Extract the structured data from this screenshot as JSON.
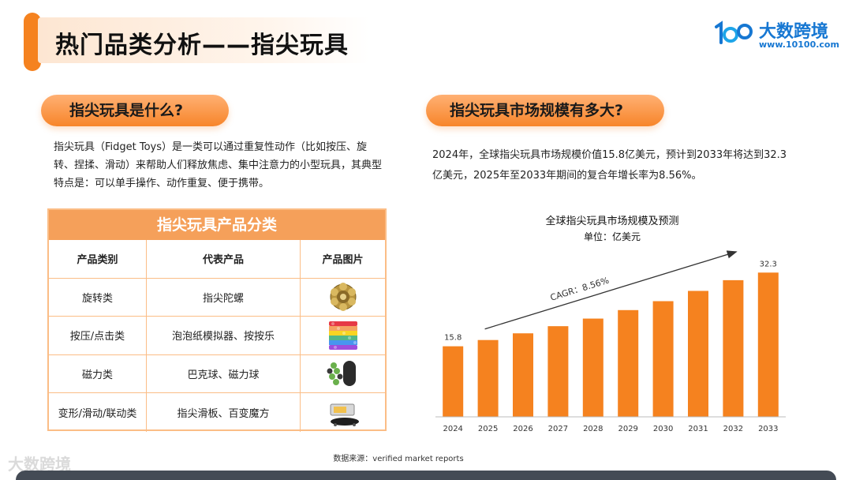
{
  "header": {
    "title": "热门品类分析——指尖玩具"
  },
  "logo": {
    "name": "大数跨境",
    "url": "www.10100.com"
  },
  "left": {
    "pill": "指尖玩具是什么?",
    "description": "指尖玩具（Fidget Toys）是一类可以通过重复性动作（比如按压、旋转、捏揉、滑动）来帮助人们释放焦虑、集中注意力的小型玩具，其典型特点是：可以单手操作、动作重复、便于携带。",
    "table": {
      "title": "指尖玩具产品分类",
      "headers": [
        "产品类别",
        "代表产品",
        "产品图片"
      ],
      "rows": [
        {
          "category": "旋转类",
          "product": "指尖陀螺",
          "image": "fidget-spinner-image"
        },
        {
          "category": "按压/点击类",
          "product": "泡泡纸模拟器、按按乐",
          "image": "pop-it-image"
        },
        {
          "category": "磁力类",
          "product": "巴克球、磁力球",
          "image": "magnetic-balls-image"
        },
        {
          "category": "变形/滑动/联动类",
          "product": "指尖滑板、百变魔方",
          "image": "finger-skateboard-image"
        }
      ]
    }
  },
  "right": {
    "pill": "指尖玩具市场规模有多大?",
    "description": "2024年，全球指尖玩具市场规模价值15.8亿美元，预计到2033年将达到32.3亿美元，2025年至2033年期间的复合年增长率为8.56%。"
  },
  "chart_data": {
    "type": "bar",
    "title": "全球指尖玩具市场规模及预测",
    "subtitle": "单位：亿美元",
    "categories": [
      "2024",
      "2025",
      "2026",
      "2027",
      "2028",
      "2029",
      "2030",
      "2031",
      "2032",
      "2033"
    ],
    "values": [
      15.8,
      17.2,
      18.7,
      20.3,
      22.0,
      23.9,
      25.9,
      28.2,
      30.6,
      32.3
    ],
    "data_labels": {
      "2024": "15.8",
      "2033": "32.3"
    },
    "annotation": "CAGR：8.56%",
    "ylim": [
      0,
      35
    ],
    "grid": false,
    "bar_color": "#f5821f"
  },
  "source": "数据来源：verified market reports",
  "watermark": "大数跨境"
}
